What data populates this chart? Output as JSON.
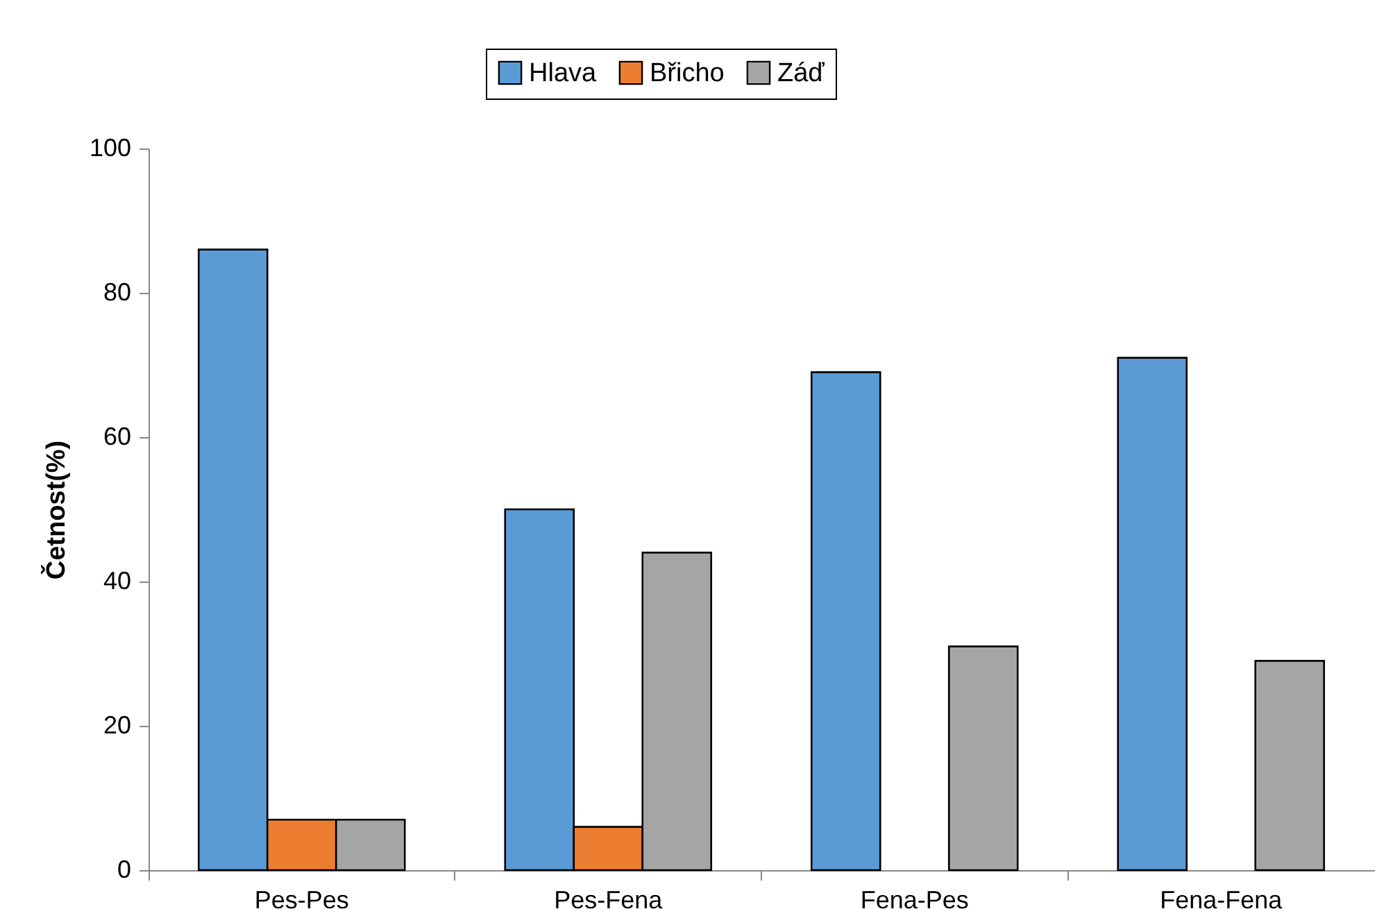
{
  "chart_data": {
    "type": "bar",
    "ylabel": "Četnost(%)",
    "categories": [
      "Pes-Pes",
      "Pes-Fena",
      "Fena-Pes",
      "Fena-Fena"
    ],
    "series": [
      {
        "name": "Hlava",
        "color": "#5b9bd5",
        "values": [
          86,
          50,
          69,
          71
        ]
      },
      {
        "name": "Břicho",
        "color": "#ed7d31",
        "values": [
          7,
          6,
          null,
          null
        ]
      },
      {
        "name": "Záď",
        "color": "#a5a5a5",
        "values": [
          7,
          44,
          31,
          29
        ]
      }
    ],
    "ylim": [
      0,
      100
    ],
    "yticks": [
      0,
      20,
      40,
      60,
      80,
      100
    ],
    "grid": false,
    "legend": "top"
  }
}
